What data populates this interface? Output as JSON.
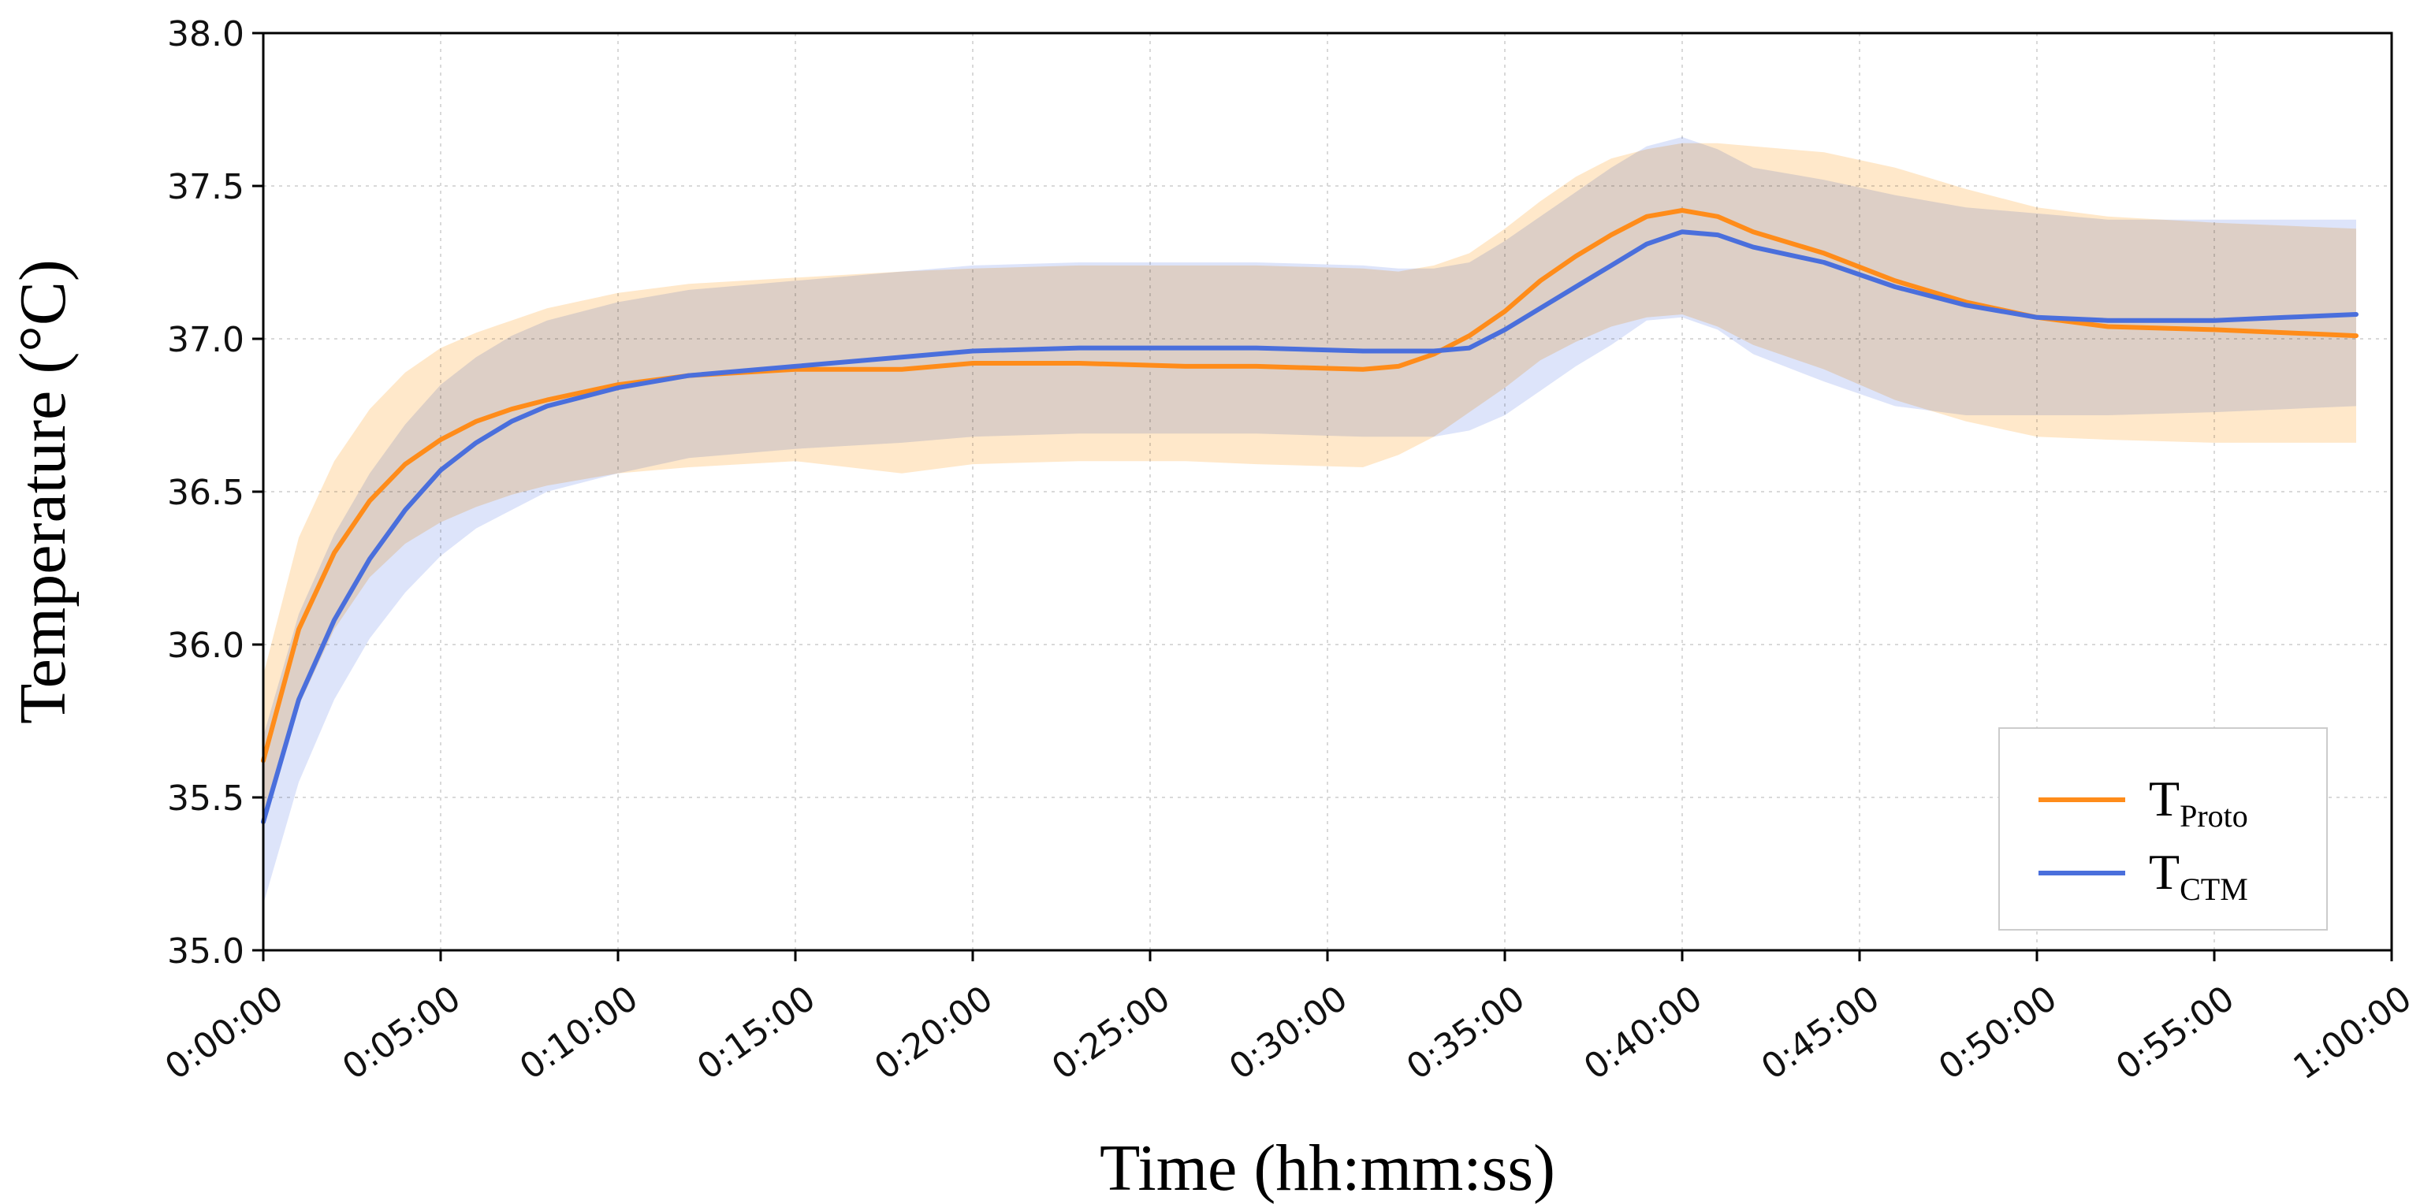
{
  "chart_data": {
    "type": "line",
    "title": "",
    "xlabel": "Time (hh:mm:ss)",
    "ylabel": "Temperature (°C)",
    "xlim": [
      0,
      60
    ],
    "ylim": [
      35.0,
      38.0
    ],
    "grid": true,
    "legend_position": "bottom-right",
    "x_tick_values": [
      0,
      5,
      10,
      15,
      20,
      25,
      30,
      35,
      40,
      45,
      50,
      55,
      60
    ],
    "x_tick_labels": [
      "0:00:00",
      "0:05:00",
      "0:10:00",
      "0:15:00",
      "0:20:00",
      "0:25:00",
      "0:30:00",
      "0:35:00",
      "0:40:00",
      "0:45:00",
      "0:50:00",
      "0:55:00",
      "1:00:00"
    ],
    "y_tick_values": [
      35.0,
      35.5,
      36.0,
      36.5,
      37.0,
      37.5,
      38.0
    ],
    "y_tick_labels": [
      "35.0",
      "35.5",
      "36.0",
      "36.5",
      "37.0",
      "37.5",
      "38.0"
    ],
    "x": [
      0,
      1,
      2,
      3,
      4,
      5,
      6,
      7,
      8,
      10,
      12,
      15,
      18,
      20,
      23,
      26,
      28,
      31,
      32,
      33,
      34,
      35,
      36,
      37,
      38,
      39,
      40,
      41,
      42,
      44,
      46,
      48,
      50,
      52,
      55,
      57,
      59
    ],
    "series": [
      {
        "name": "T_Proto",
        "legend_main": "T",
        "legend_sub": "Proto",
        "color": "#ff8c1a",
        "band_color": "#ffe0b8",
        "values": [
          35.62,
          36.05,
          36.3,
          36.47,
          36.59,
          36.67,
          36.73,
          36.77,
          36.8,
          36.85,
          36.88,
          36.9,
          36.9,
          36.92,
          36.92,
          36.91,
          36.91,
          36.9,
          36.91,
          36.95,
          37.01,
          37.09,
          37.19,
          37.27,
          37.34,
          37.4,
          37.42,
          37.4,
          37.35,
          37.28,
          37.19,
          37.12,
          37.07,
          37.04,
          37.03,
          37.02,
          37.01
        ],
        "upper": [
          35.9,
          36.35,
          36.6,
          36.77,
          36.89,
          36.97,
          37.02,
          37.06,
          37.1,
          37.15,
          37.18,
          37.2,
          37.22,
          37.23,
          37.24,
          37.24,
          37.24,
          37.23,
          37.22,
          37.24,
          37.28,
          37.36,
          37.45,
          37.53,
          37.59,
          37.62,
          37.64,
          37.64,
          37.63,
          37.61,
          37.56,
          37.49,
          37.43,
          37.4,
          37.38,
          37.37,
          37.36
        ],
        "lower": [
          35.4,
          35.8,
          36.05,
          36.22,
          36.33,
          36.4,
          36.45,
          36.49,
          36.52,
          36.56,
          36.58,
          36.6,
          36.56,
          36.59,
          36.6,
          36.6,
          36.59,
          36.58,
          36.62,
          36.68,
          36.76,
          36.84,
          36.93,
          36.99,
          37.04,
          37.07,
          37.08,
          37.04,
          36.98,
          36.9,
          36.8,
          36.73,
          36.68,
          36.67,
          36.66,
          36.66,
          36.66
        ]
      },
      {
        "name": "T_CTM",
        "legend_main": "T",
        "legend_sub": "CTM",
        "color": "#4a6fdc",
        "band_color": "#c6d2f6",
        "values": [
          35.42,
          35.82,
          36.08,
          36.28,
          36.44,
          36.57,
          36.66,
          36.73,
          36.78,
          36.84,
          36.88,
          36.91,
          36.94,
          36.96,
          36.97,
          36.97,
          36.97,
          36.96,
          36.96,
          36.96,
          36.97,
          37.03,
          37.1,
          37.17,
          37.24,
          37.31,
          37.35,
          37.34,
          37.3,
          37.25,
          37.17,
          37.11,
          37.07,
          37.06,
          37.06,
          37.07,
          37.08
        ],
        "upper": [
          35.7,
          36.1,
          36.36,
          36.56,
          36.72,
          36.85,
          36.94,
          37.01,
          37.06,
          37.12,
          37.16,
          37.19,
          37.22,
          37.24,
          37.25,
          37.25,
          37.25,
          37.24,
          37.23,
          37.23,
          37.25,
          37.32,
          37.4,
          37.48,
          37.56,
          37.63,
          37.66,
          37.62,
          37.56,
          37.52,
          37.47,
          37.43,
          37.41,
          37.39,
          37.39,
          37.39,
          37.39
        ],
        "lower": [
          35.15,
          35.55,
          35.82,
          36.02,
          36.17,
          36.29,
          36.38,
          36.44,
          36.5,
          36.56,
          36.61,
          36.64,
          36.66,
          36.68,
          36.69,
          36.69,
          36.69,
          36.68,
          36.68,
          36.68,
          36.7,
          36.75,
          36.83,
          36.91,
          36.98,
          37.06,
          37.07,
          37.03,
          36.95,
          36.86,
          36.78,
          36.75,
          36.75,
          36.75,
          36.76,
          36.77,
          36.78
        ]
      }
    ]
  }
}
